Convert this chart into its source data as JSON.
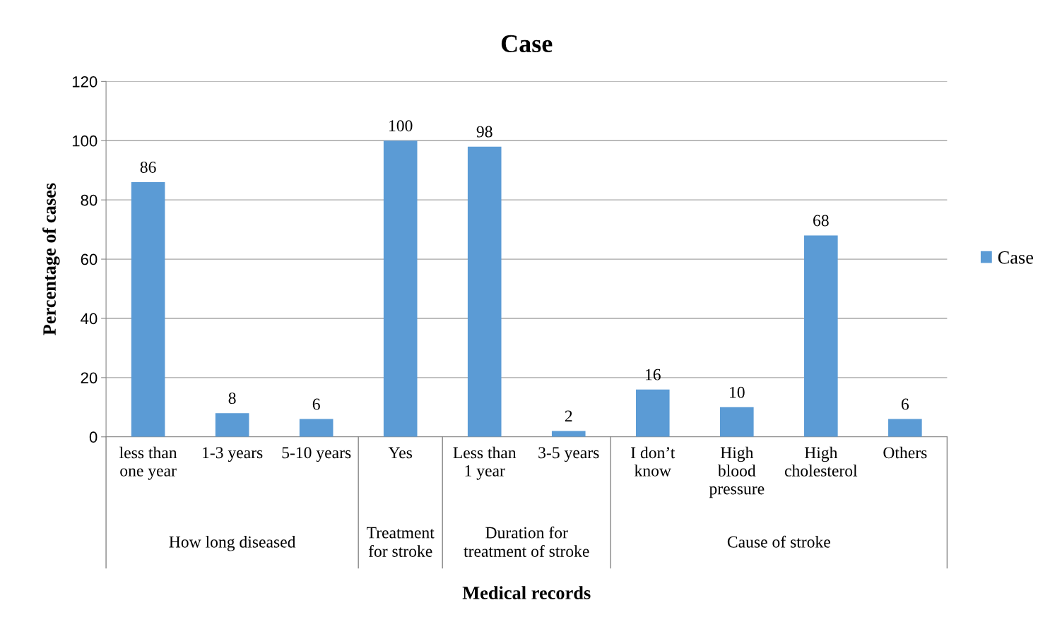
{
  "chart_data": {
    "type": "bar",
    "title": "Case",
    "xlabel": "Medical records",
    "ylabel": "Percentage of cases",
    "categories": [
      "less than\none year",
      "1-3 years",
      "5-10 years",
      "Yes",
      "Less than\n1 year",
      "3-5 years",
      "I don’t\nknow",
      "High\nblood\npressure",
      "High\ncholesterol",
      "Others"
    ],
    "series": [
      {
        "name": "Case",
        "color": "#5b9bd5",
        "values": [
          86,
          8,
          6,
          100,
          98,
          2,
          16,
          10,
          68,
          6
        ]
      }
    ],
    "annotations": [
      "How long diseased",
      "Treatment\nfor stroke",
      "Duration for\ntreatment of stroke",
      "Cause of stroke"
    ],
    "ylim": [
      0,
      120
    ],
    "yticks": [
      0,
      20,
      40,
      60,
      80,
      100,
      120
    ],
    "grid": "y",
    "legend": "right",
    "data_labels": true
  }
}
